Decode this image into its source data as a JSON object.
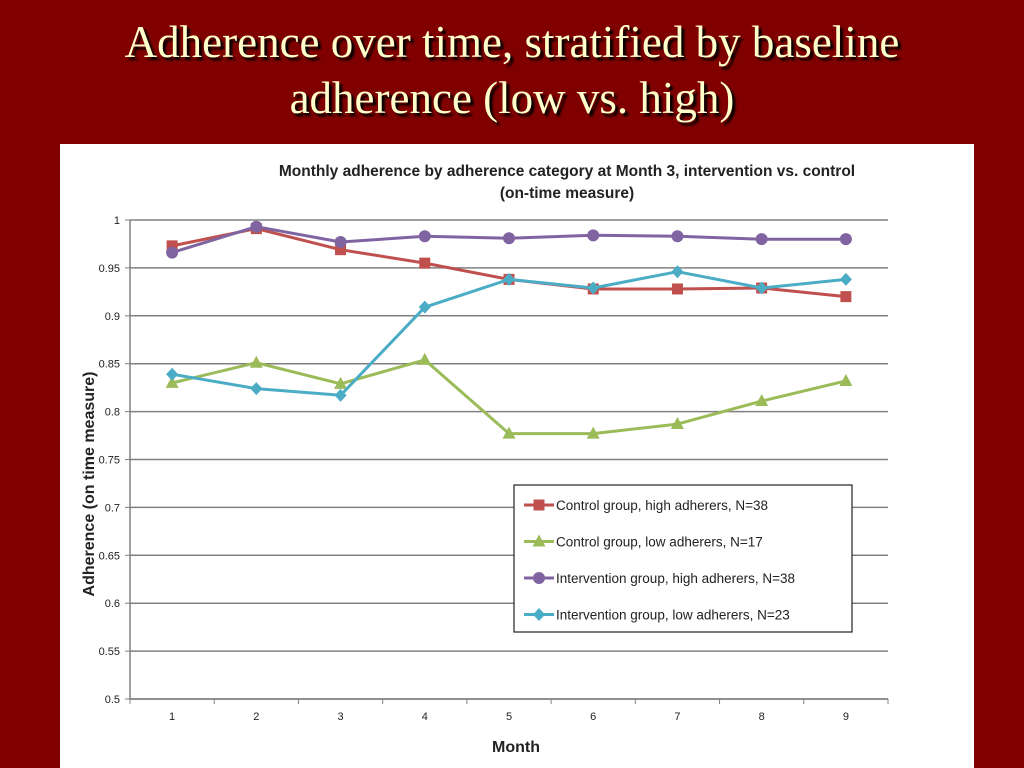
{
  "slide": {
    "title_line1": "Adherence over time, stratified by baseline",
    "title_line2": "adherence (low vs. high)"
  },
  "colors": {
    "background": "#800000",
    "title_text": "#ffffcc"
  },
  "chart_data": {
    "type": "line",
    "title_line1": "Monthly adherence by adherence category at Month 3, intervention vs. control",
    "title_line2": "(on-time measure)",
    "xlabel": "Month",
    "ylabel": "Adherence (on time measure)",
    "x": [
      1,
      2,
      3,
      4,
      5,
      6,
      7,
      8,
      9
    ],
    "ylim": [
      0.5,
      1
    ],
    "yticks": [
      0.5,
      0.55,
      0.6,
      0.65,
      0.7,
      0.75,
      0.8,
      0.85,
      0.9,
      0.95,
      1
    ],
    "grid": true,
    "legend_position": "bottom-right",
    "series": [
      {
        "name": "Control group, high adherers, N=38",
        "color": "#c0504d",
        "marker": "square",
        "values": [
          0.973,
          0.991,
          0.969,
          0.955,
          0.938,
          0.928,
          0.928,
          0.929,
          0.92
        ]
      },
      {
        "name": "Control group, low adherers, N=17",
        "color": "#9bbb59",
        "marker": "triangle",
        "values": [
          0.83,
          0.851,
          0.829,
          0.854,
          0.777,
          0.777,
          0.787,
          0.811,
          0.832
        ]
      },
      {
        "name": "Intervention group, high adherers, N=38",
        "color": "#8064a2",
        "marker": "circle",
        "values": [
          0.966,
          0.993,
          0.977,
          0.983,
          0.981,
          0.984,
          0.983,
          0.98,
          0.98
        ]
      },
      {
        "name": "Intervention group, low adherers, N=23",
        "color": "#4bacc6",
        "marker": "diamond",
        "values": [
          0.839,
          0.824,
          0.817,
          0.909,
          0.938,
          0.929,
          0.946,
          0.929,
          0.938
        ]
      }
    ]
  }
}
